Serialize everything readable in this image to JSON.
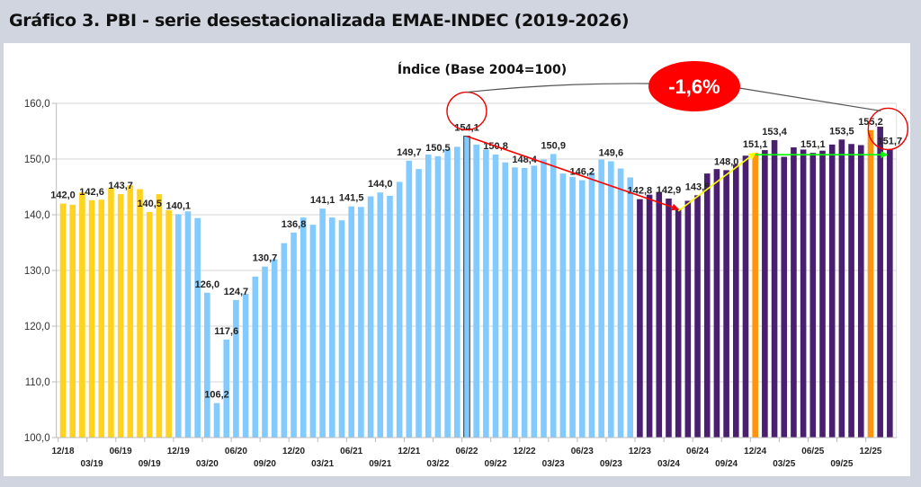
{
  "header": {
    "title": "Gráfico 3. PBI - serie desestacionalizada EMAE-INDEC (2019-2026)"
  },
  "chart_data": {
    "type": "bar",
    "subtitle": "Índice (Base 2004=100)",
    "ylim": [
      100,
      160
    ],
    "yticks": [
      "100,0",
      "110,0",
      "120,0",
      "130,0",
      "140,0",
      "150,0",
      "160,0"
    ],
    "grid": true,
    "categories": [
      "12/18",
      "01/19",
      "02/19",
      "03/19",
      "04/19",
      "05/19",
      "06/19",
      "07/19",
      "08/19",
      "09/19",
      "10/19",
      "11/19",
      "12/19",
      "01/20",
      "02/20",
      "03/20",
      "04/20",
      "05/20",
      "06/20",
      "07/20",
      "08/20",
      "09/20",
      "10/20",
      "11/20",
      "12/20",
      "01/21",
      "02/21",
      "03/21",
      "04/21",
      "05/21",
      "06/21",
      "07/21",
      "08/21",
      "09/21",
      "10/21",
      "11/21",
      "12/21",
      "01/22",
      "02/22",
      "03/22",
      "04/22",
      "05/22",
      "06/22",
      "07/22",
      "08/22",
      "09/22",
      "10/22",
      "11/22",
      "12/22",
      "01/23",
      "02/23",
      "03/23",
      "04/23",
      "05/23",
      "06/23",
      "07/23",
      "08/23",
      "09/23",
      "10/23",
      "11/23",
      "12/23",
      "01/24",
      "02/24",
      "03/24",
      "04/24",
      "05/24",
      "06/24",
      "07/24",
      "08/24",
      "09/24",
      "10/24",
      "11/24",
      "12/24",
      "01/25",
      "02/25",
      "03/25",
      "04/25",
      "05/25",
      "06/25",
      "07/25",
      "08/25",
      "09/25",
      "10/25",
      "11/25",
      "12/25",
      "01/26",
      "02/26"
    ],
    "values": [
      142.0,
      141.8,
      144.0,
      142.6,
      142.7,
      144.8,
      143.7,
      145.3,
      144.6,
      140.5,
      143.7,
      140.8,
      140.1,
      140.6,
      139.4,
      126.0,
      106.2,
      117.6,
      124.7,
      125.8,
      128.9,
      130.7,
      132.0,
      134.9,
      136.8,
      139.5,
      138.2,
      141.1,
      139.5,
      139.0,
      141.5,
      141.4,
      143.3,
      144.0,
      143.4,
      145.9,
      149.7,
      148.2,
      150.8,
      150.5,
      151.8,
      152.2,
      154.1,
      152.6,
      151.7,
      150.8,
      149.4,
      148.5,
      148.4,
      148.8,
      149.9,
      150.9,
      147.4,
      146.8,
      146.2,
      147.6,
      149.9,
      149.6,
      148.3,
      146.7,
      142.8,
      143.6,
      144.1,
      142.9,
      141.0,
      142.5,
      143.5,
      147.4,
      148.2,
      148.0,
      149.0,
      150.6,
      151.1,
      151.6,
      153.4,
      150.4,
      152.1,
      151.7,
      151.1,
      151.5,
      152.6,
      153.5,
      152.7,
      152.5,
      155.2,
      155.8,
      151.7
    ],
    "xtick_labels": [
      "12/18",
      "03/19",
      "06/19",
      "09/19",
      "12/19",
      "03/20",
      "06/20",
      "09/20",
      "12/20",
      "03/21",
      "06/21",
      "09/21",
      "12/21",
      "03/22",
      "06/22",
      "09/22",
      "12/22",
      "03/23",
      "06/23",
      "09/23",
      "12/23",
      "03/24",
      "06/24",
      "09/24",
      "12/24",
      "03/25",
      "06/25",
      "09/25",
      "12/25"
    ],
    "color_periods": [
      {
        "from": "12/18",
        "to": "11/19",
        "color": "#FFD320"
      },
      {
        "from": "12/19",
        "to": "11/23",
        "color": "#83CAFF"
      },
      {
        "from": "12/23",
        "to": "02/26",
        "color": "#4B1F6F"
      }
    ],
    "highlight_bars": [
      {
        "category": "12/24",
        "color": "#FF950E"
      },
      {
        "category": "12/25",
        "color": "#FF950E"
      }
    ],
    "outlined_bar": "06/22",
    "data_labels": [
      {
        "category": "12/18",
        "text": "142,0"
      },
      {
        "category": "03/19",
        "text": "142,6"
      },
      {
        "category": "06/19",
        "text": "143,7"
      },
      {
        "category": "09/19",
        "text": "140,5"
      },
      {
        "category": "12/19",
        "text": "140,1"
      },
      {
        "category": "03/20",
        "text": "126,0"
      },
      {
        "category": "04/20",
        "text": "106,2"
      },
      {
        "category": "05/20",
        "text": "117,6"
      },
      {
        "category": "06/20",
        "text": "124,7"
      },
      {
        "category": "09/20",
        "text": "130,7"
      },
      {
        "category": "12/20",
        "text": "136,8"
      },
      {
        "category": "03/21",
        "text": "141,1"
      },
      {
        "category": "06/21",
        "text": "141,5"
      },
      {
        "category": "09/21",
        "text": "144,0"
      },
      {
        "category": "12/21",
        "text": "149,7"
      },
      {
        "category": "03/22",
        "text": "150,5"
      },
      {
        "category": "06/22",
        "text": "154,1"
      },
      {
        "category": "09/22",
        "text": "150,8"
      },
      {
        "category": "12/22",
        "text": "148,4"
      },
      {
        "category": "03/23",
        "text": "150,9"
      },
      {
        "category": "06/23",
        "text": "146,2"
      },
      {
        "category": "09/23",
        "text": "149,6"
      },
      {
        "category": "12/23",
        "text": "142,8"
      },
      {
        "category": "03/24",
        "text": "142,9"
      },
      {
        "category": "06/24",
        "text": "143,5"
      },
      {
        "category": "09/24",
        "text": "148,0"
      },
      {
        "category": "12/24",
        "text": "151,1"
      },
      {
        "category": "02/25",
        "text": "153,4"
      },
      {
        "category": "06/25",
        "text": "151,1"
      },
      {
        "category": "09/25",
        "text": "153,5"
      },
      {
        "category": "12/25",
        "text": "155,2"
      },
      {
        "category": "02/26",
        "text": "151,7"
      }
    ],
    "annotations": {
      "change_label": "-1,6%",
      "change_from": "06/22",
      "change_to": "02/26",
      "arrows": [
        {
          "from": "06/22",
          "to": "04/24",
          "color": "#FF0000"
        },
        {
          "from": "04/24",
          "to": "12/24",
          "color": "#FFFF00"
        },
        {
          "from": "12/24",
          "to": "02/26",
          "color": "#00FF00"
        }
      ]
    }
  }
}
